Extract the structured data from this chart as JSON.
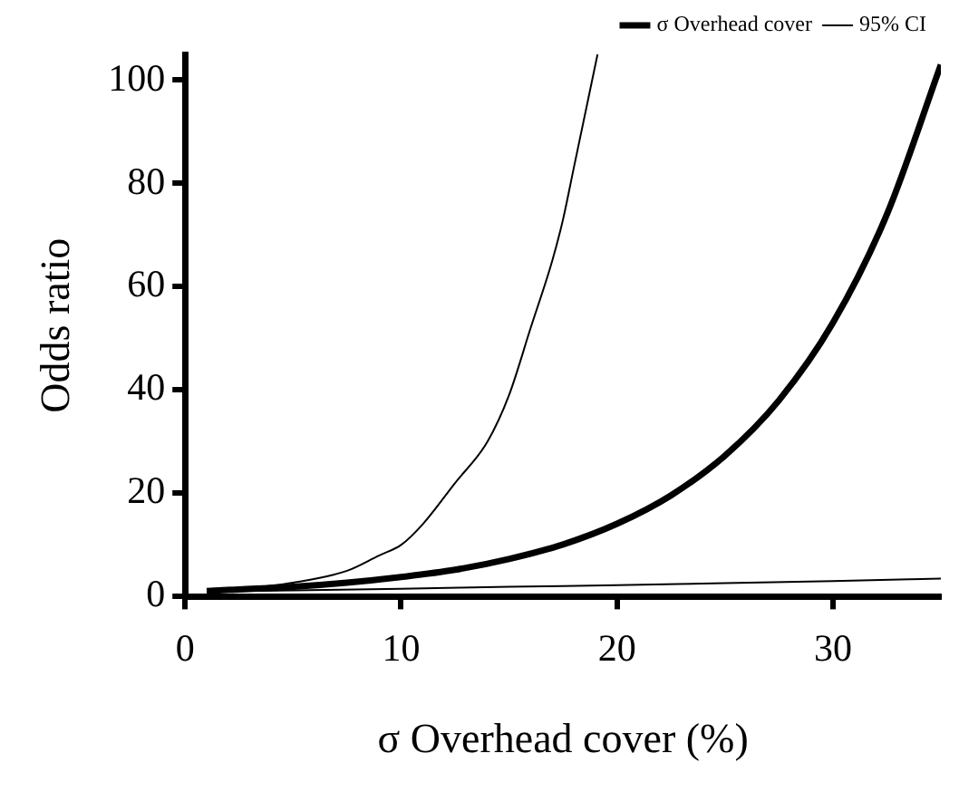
{
  "chart_data": {
    "type": "line",
    "xlabel": "σ Overhead cover (%)",
    "ylabel": "Odds ratio",
    "xlim": [
      0,
      35
    ],
    "xticks": [
      0,
      10,
      20,
      30
    ],
    "ylim": [
      0,
      105
    ],
    "yticks": [
      0,
      20,
      40,
      60,
      80,
      100
    ],
    "grid": false,
    "legend": "top",
    "marker": "none",
    "line_style": "solid",
    "series": [
      {
        "name": "σ Overhead cover",
        "color": "#000000",
        "x": [
          1,
          2.5,
          5,
          7.5,
          10,
          12.5,
          15,
          17.5,
          20,
          22.5,
          25,
          27.5,
          30,
          32.5,
          35
        ],
        "values": [
          1.1,
          1.4,
          1.9,
          2.7,
          3.8,
          5.2,
          7.3,
          10.1,
          14.1,
          19.6,
          27.3,
          38,
          53,
          74,
          103
        ]
      },
      {
        "name": "95% CI",
        "color": "#000000",
        "x": [
          1,
          2.5,
          5,
          7.5,
          9,
          10,
          11,
          12.5,
          14,
          15,
          16,
          17,
          17.5,
          18,
          19.1
        ],
        "values": [
          1.1,
          1.5,
          2.7,
          5,
          8,
          10,
          14,
          22,
          30,
          39,
          52,
          65,
          73,
          83,
          105
        ]
      },
      {
        "color": "#000000",
        "x": [
          1,
          5,
          10,
          15,
          20,
          25,
          30,
          35
        ],
        "values": [
          1,
          1.2,
          1.5,
          1.9,
          2.2,
          2.6,
          3,
          3.5
        ]
      }
    ]
  }
}
